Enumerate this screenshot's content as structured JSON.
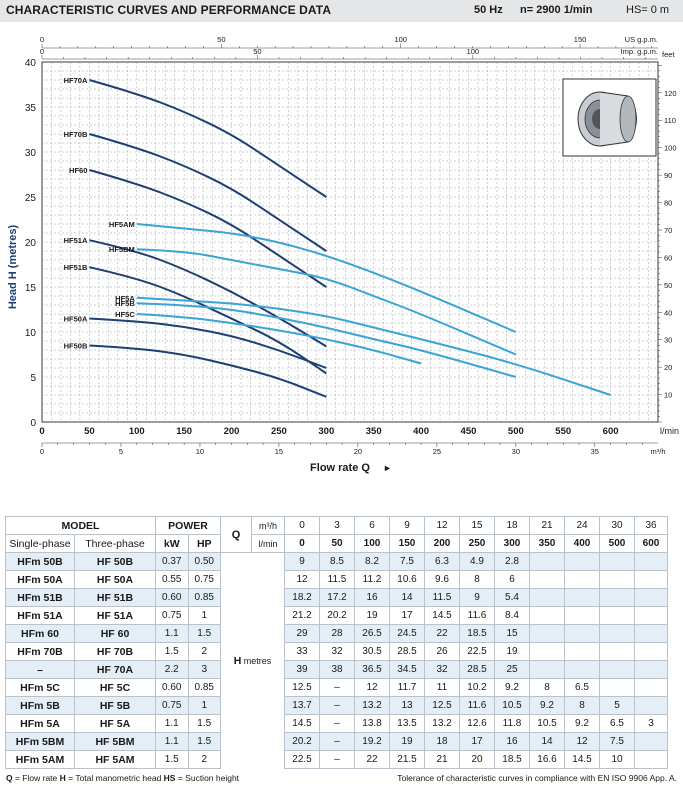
{
  "header": {
    "title": "CHARACTERISTIC CURVES AND PERFORMANCE DATA",
    "freq": "50 Hz",
    "speed": "n= 2900  1/min",
    "hs": "HS= 0 m"
  },
  "chart_data": {
    "type": "line",
    "xlabel": "Flow rate Q",
    "ylabel": "Head H (metres)",
    "x_unit_label": "l/min",
    "x_m3h_unit": "m³/h",
    "right_unit": "feet",
    "top_usgpm_unit": "US g.p.m.",
    "top_impgpm_unit": "Imp. g.p.m.",
    "xlim": [
      0,
      650
    ],
    "ylim": [
      0,
      40
    ],
    "x_ticks": [
      0,
      50,
      100,
      150,
      200,
      250,
      300,
      350,
      400,
      450,
      500,
      550,
      600
    ],
    "y_ticks": [
      0,
      5,
      10,
      15,
      20,
      25,
      30,
      35,
      40
    ],
    "feet_ticks": [
      10,
      20,
      30,
      40,
      50,
      60,
      70,
      80,
      90,
      100,
      110,
      120
    ],
    "m3h_ticks": [
      0,
      5,
      10,
      15,
      20,
      25,
      30,
      35
    ],
    "usgpm_ticks": [
      0,
      50,
      100,
      150
    ],
    "impgpm_ticks": [
      0,
      50,
      100
    ],
    "grid": true,
    "series": [
      {
        "name": "HF70A",
        "color": "#1d3f73",
        "x": [
          50,
          100,
          150,
          200,
          250,
          300
        ],
        "y": [
          38,
          36.5,
          34.5,
          32,
          28.5,
          25
        ]
      },
      {
        "name": "HF70B",
        "color": "#1d3f73",
        "x": [
          50,
          100,
          150,
          200,
          250,
          300
        ],
        "y": [
          32,
          30.5,
          28.5,
          26,
          22.5,
          19
        ]
      },
      {
        "name": "HF60",
        "color": "#1d3f73",
        "x": [
          50,
          100,
          150,
          200,
          250,
          300
        ],
        "y": [
          28,
          26.5,
          24.5,
          22,
          18.5,
          15
        ]
      },
      {
        "name": "HF51A",
        "color": "#1d3f73",
        "x": [
          50,
          100,
          150,
          200,
          250,
          300
        ],
        "y": [
          20.2,
          19,
          17,
          14.5,
          11.6,
          8.4
        ]
      },
      {
        "name": "HF51B",
        "color": "#1d3f73",
        "x": [
          50,
          100,
          150,
          200,
          250,
          300
        ],
        "y": [
          17.2,
          16,
          14,
          11.5,
          9,
          5.4
        ]
      },
      {
        "name": "HF50A",
        "color": "#1d3f73",
        "x": [
          50,
          100,
          150,
          200,
          250,
          300
        ],
        "y": [
          11.5,
          11.2,
          10.6,
          9.6,
          8,
          6
        ]
      },
      {
        "name": "HF50B",
        "color": "#1d3f73",
        "x": [
          50,
          100,
          150,
          200,
          250,
          300
        ],
        "y": [
          8.5,
          8.2,
          7.5,
          6.3,
          4.9,
          2.8
        ]
      },
      {
        "name": "HF5AM",
        "color": "#3aa4d4",
        "x": [
          100,
          150,
          200,
          250,
          300,
          350,
          400,
          500
        ],
        "y": [
          22,
          21.5,
          21,
          20,
          18.5,
          16.6,
          14.5,
          10
        ]
      },
      {
        "name": "HF5BM",
        "color": "#3aa4d4",
        "x": [
          100,
          150,
          200,
          250,
          300,
          350,
          400,
          500
        ],
        "y": [
          19.2,
          19,
          18,
          17,
          16,
          14,
          12,
          7.5
        ]
      },
      {
        "name": "HF5A",
        "color": "#3aa4d4",
        "x": [
          100,
          150,
          200,
          250,
          300,
          350,
          400,
          500,
          600
        ],
        "y": [
          13.8,
          13.5,
          13.2,
          12.6,
          11.8,
          10.5,
          9.2,
          6.5,
          3
        ]
      },
      {
        "name": "HF5B",
        "color": "#3aa4d4",
        "x": [
          100,
          150,
          200,
          250,
          300,
          350,
          400,
          500
        ],
        "y": [
          13.2,
          13,
          12.5,
          11.6,
          10.5,
          9.2,
          8,
          5
        ]
      },
      {
        "name": "HF5C",
        "color": "#3aa4d4",
        "x": [
          100,
          150,
          200,
          250,
          300,
          350,
          400
        ],
        "y": [
          12,
          11.7,
          11,
          10.2,
          9.2,
          8,
          6.5
        ]
      }
    ],
    "annotations": [
      {
        "text": "HF70A",
        "ref": "HF70A"
      },
      {
        "text": "HF70B",
        "ref": "HF70B"
      },
      {
        "text": "HF60",
        "ref": "HF60"
      },
      {
        "text": "HF51A",
        "ref": "HF51A"
      },
      {
        "text": "HF51B",
        "ref": "HF51B"
      },
      {
        "text": "HF50A",
        "ref": "HF50A"
      },
      {
        "text": "HF50B",
        "ref": "HF50B"
      },
      {
        "text": "HF5AM",
        "ref": "HF5AM"
      },
      {
        "text": "HF5BM",
        "ref": "HF5BM"
      },
      {
        "text": "HF5A",
        "ref": "HF5A"
      },
      {
        "text": "HF5B",
        "ref": "HF5B"
      },
      {
        "text": "HF5C",
        "ref": "HF5C"
      }
    ]
  },
  "table": {
    "h_model": "MODEL",
    "h_power": "POWER",
    "h_single": "Single-phase",
    "h_three": "Three-phase",
    "h_kw": "kW",
    "h_hp": "HP",
    "q_label": "Q",
    "m3h_label": "m³/h",
    "lmin_label": "l/min",
    "h_label": "H",
    "metres_label": "metres",
    "q_m3h": [
      "0",
      "3",
      "6",
      "9",
      "12",
      "15",
      "18",
      "21",
      "24",
      "30",
      "36"
    ],
    "q_lmin": [
      "0",
      "50",
      "100",
      "150",
      "200",
      "250",
      "300",
      "350",
      "400",
      "500",
      "600"
    ],
    "rows": [
      {
        "single": "HFm 50B",
        "three": "HF 50B",
        "kw": "0.37",
        "hp": "0.50",
        "h": [
          "9",
          "8.5",
          "8.2",
          "7.5",
          "6.3",
          "4.9",
          "2.8",
          "",
          "",
          "",
          ""
        ]
      },
      {
        "single": "HFm 50A",
        "three": "HF 50A",
        "kw": "0.55",
        "hp": "0.75",
        "h": [
          "12",
          "11.5",
          "11.2",
          "10.6",
          "9.6",
          "8",
          "6",
          "",
          "",
          "",
          ""
        ]
      },
      {
        "single": "HFm 51B",
        "three": "HF 51B",
        "kw": "0.60",
        "hp": "0.85",
        "h": [
          "18.2",
          "17.2",
          "16",
          "14",
          "11.5",
          "9",
          "5.4",
          "",
          "",
          "",
          ""
        ]
      },
      {
        "single": "HFm 51A",
        "three": "HF 51A",
        "kw": "0.75",
        "hp": "1",
        "h": [
          "21.2",
          "20.2",
          "19",
          "17",
          "14.5",
          "11.6",
          "8.4",
          "",
          "",
          "",
          ""
        ]
      },
      {
        "single": "HFm 60",
        "three": "HF 60",
        "kw": "1.1",
        "hp": "1.5",
        "h": [
          "29",
          "28",
          "26.5",
          "24.5",
          "22",
          "18.5",
          "15",
          "",
          "",
          "",
          ""
        ]
      },
      {
        "single": "HFm 70B",
        "three": "HF 70B",
        "kw": "1.5",
        "hp": "2",
        "h": [
          "33",
          "32",
          "30.5",
          "28.5",
          "26",
          "22.5",
          "19",
          "",
          "",
          "",
          ""
        ]
      },
      {
        "single": "–",
        "three": "HF 70A",
        "kw": "2.2",
        "hp": "3",
        "h": [
          "39",
          "38",
          "36.5",
          "34.5",
          "32",
          "28.5",
          "25",
          "",
          "",
          "",
          ""
        ]
      },
      {
        "single": "HFm 5C",
        "three": "HF 5C",
        "kw": "0.60",
        "hp": "0.85",
        "h": [
          "12.5",
          "–",
          "12",
          "11.7",
          "11",
          "10.2",
          "9.2",
          "8",
          "6.5",
          "",
          ""
        ]
      },
      {
        "single": "HFm 5B",
        "three": "HF 5B",
        "kw": "0.75",
        "hp": "1",
        "h": [
          "13.7",
          "–",
          "13.2",
          "13",
          "12.5",
          "11.6",
          "10.5",
          "9.2",
          "8",
          "5",
          ""
        ]
      },
      {
        "single": "HFm 5A",
        "three": "HF 5A",
        "kw": "1.1",
        "hp": "1.5",
        "h": [
          "14.5",
          "–",
          "13.8",
          "13.5",
          "13.2",
          "12.6",
          "11.8",
          "10.5",
          "9.2",
          "6.5",
          "3"
        ]
      },
      {
        "single": "HFm 5BM",
        "three": "HF 5BM",
        "kw": "1.1",
        "hp": "1.5",
        "h": [
          "20.2",
          "–",
          "19.2",
          "19",
          "18",
          "17",
          "16",
          "14",
          "12",
          "7.5",
          ""
        ]
      },
      {
        "single": "HFm 5AM",
        "three": "HF 5AM",
        "kw": "1.5",
        "hp": "2",
        "h": [
          "22.5",
          "–",
          "22",
          "21.5",
          "21",
          "20",
          "18.5",
          "16.6",
          "14.5",
          "10",
          ""
        ]
      }
    ]
  },
  "footer": {
    "q_abbr": "Q",
    "q_text": " = Flow rate   ",
    "h_abbr": "H",
    "h_text": " = Total manometric head   ",
    "hs_abbr": "HS",
    "hs_text": " = Suction height",
    "tolerance": "Tolerance of characteristic curves in compliance with  EN ISO 9906 App. A."
  }
}
